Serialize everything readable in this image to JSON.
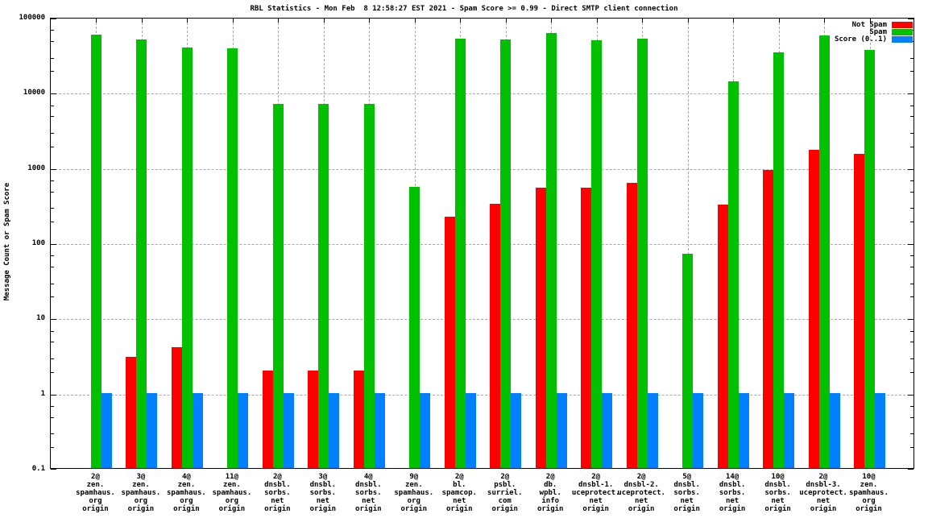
{
  "title": "RBL Statistics - Mon Feb  8 12:58:27 EST 2021 - Spam Score >= 0.99 - Direct SMTP client connection",
  "ylabel": "Message Count or Spam Score",
  "colors": {
    "not_spam": "#ff0000",
    "spam": "#00c000",
    "score": "#0080ff",
    "grid": "#a8a8a8",
    "text": "#000000"
  },
  "legend": [
    {
      "label": "Not Spam",
      "color": "#ff0000"
    },
    {
      "label": "Spam",
      "color": "#00c000"
    },
    {
      "label": "Score (0..1)",
      "color": "#0080ff"
    }
  ],
  "chart_data": {
    "type": "bar",
    "yscale": "log",
    "ylim": [
      0.1,
      100000
    ],
    "grid": true,
    "legend_position": "top-right",
    "ylabel": "Message Count or Spam Score",
    "ytick_values": [
      0.1,
      1,
      10,
      100,
      1000,
      10000,
      100000
    ],
    "ytick_labels": [
      "0.1",
      "1",
      "10",
      "100",
      "1000",
      "10000",
      "100000"
    ],
    "categories": [
      "2@\nzen.\nspamhaus.\norg\norigin",
      "3@\nzen.\nspamhaus.\norg\norigin",
      "4@\nzen.\nspamhaus.\norg\norigin",
      "11@\nzen.\nspamhaus.\norg\norigin",
      "2@\ndnsbl.\nsorbs.\nnet\norigin",
      "3@\ndnsbl.\nsorbs.\nnet\norigin",
      "4@\ndnsbl.\nsorbs.\nnet\norigin",
      "9@\nzen.\nspamhaus.\norg\norigin",
      "2@\nbl.\nspamcop.\nnet\norigin",
      "2@\npsbl.\nsurriel.\ncom\norigin",
      "2@\ndb.\nwpbl.\ninfo\norigin",
      "2@\ndnsbl-1.\nuceprotect.\nnet\norigin",
      "2@\ndnsbl-2.\nuceprotect.\nnet\norigin",
      "5@\ndnsbl.\nsorbs.\nnet\norigin",
      "14@\ndnsbl.\nsorbs.\nnet\norigin",
      "10@\ndnsbl.\nsorbs.\nnet\norigin",
      "2@\ndnsbl-3.\nuceprotect.\nnet\norigin",
      "10@\nzen.\nspamhaus.\norg\norigin"
    ],
    "series": [
      {
        "name": "Not Spam",
        "color": "#ff0000",
        "values": [
          null,
          3,
          4,
          null,
          2,
          2,
          2,
          null,
          220,
          330,
          530,
          530,
          620,
          null,
          320,
          930,
          1700,
          1500
        ]
      },
      {
        "name": "Spam",
        "color": "#00c000",
        "values": [
          58000,
          50000,
          39000,
          38000,
          7000,
          7000,
          7000,
          550,
          51000,
          50000,
          61000,
          49000,
          52000,
          70,
          14000,
          34000,
          57000,
          36000
        ]
      },
      {
        "name": "Score (0..1)",
        "color": "#0080ff",
        "values": [
          1,
          1,
          1,
          1,
          1,
          1,
          1,
          1,
          1,
          1,
          1,
          1,
          1,
          1,
          1,
          1,
          1,
          1
        ]
      }
    ]
  }
}
